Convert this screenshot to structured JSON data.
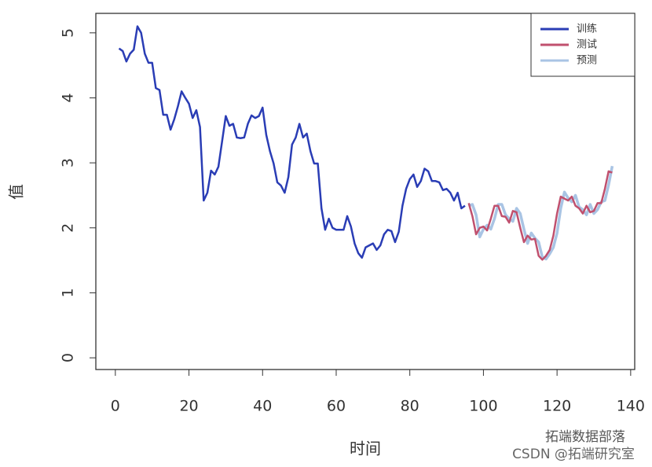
{
  "chart_data": {
    "type": "line",
    "x_label": "时间",
    "y_label": "值",
    "x": [
      1,
      2,
      3,
      4,
      5,
      6,
      7,
      8,
      9,
      10,
      11,
      12,
      13,
      14,
      15,
      16,
      17,
      18,
      19,
      20,
      21,
      22,
      23,
      24,
      25,
      26,
      27,
      28,
      29,
      30,
      31,
      32,
      33,
      34,
      35,
      36,
      37,
      38,
      39,
      40,
      41,
      42,
      43,
      44,
      45,
      46,
      47,
      48,
      49,
      50,
      51,
      52,
      53,
      54,
      55,
      56,
      57,
      58,
      59,
      60,
      61,
      62,
      63,
      64,
      65,
      66,
      67,
      68,
      69,
      70,
      71,
      72,
      73,
      74,
      75,
      76,
      77,
      78,
      79,
      80,
      81,
      82,
      83,
      84,
      85,
      86,
      87,
      88,
      89,
      90,
      91,
      92,
      93,
      94,
      95,
      96,
      97,
      98,
      99,
      100,
      101,
      102,
      103,
      104,
      105,
      106,
      107,
      108,
      109,
      110,
      111,
      112,
      113,
      114,
      115,
      116,
      117,
      118,
      119,
      120,
      121,
      122,
      123,
      124,
      125,
      126,
      127,
      128,
      129,
      130,
      131,
      132,
      133,
      134,
      135
    ],
    "series": [
      {
        "name": "训练",
        "color": "#2a3db5",
        "values": [
          4.76,
          4.72,
          4.56,
          4.68,
          4.74,
          5.1,
          5.0,
          4.68,
          4.54,
          4.54,
          4.15,
          4.12,
          3.74,
          3.74,
          3.51,
          3.67,
          3.87,
          4.1,
          4.0,
          3.91,
          3.69,
          3.81,
          3.55,
          2.42,
          2.54,
          2.88,
          2.82,
          2.94,
          3.33,
          3.72,
          3.57,
          3.6,
          3.39,
          3.38,
          3.39,
          3.6,
          3.73,
          3.69,
          3.72,
          3.85,
          3.43,
          3.18,
          2.99,
          2.7,
          2.65,
          2.54,
          2.78,
          3.28,
          3.39,
          3.6,
          3.39,
          3.45,
          3.18,
          2.99,
          2.99,
          2.3,
          1.97,
          2.14,
          2.0,
          1.97,
          1.97,
          1.97,
          2.18,
          2.02,
          1.76,
          1.61,
          1.54,
          1.7,
          1.73,
          1.76,
          1.66,
          1.73,
          1.9,
          1.97,
          1.95,
          1.78,
          1.94,
          2.34,
          2.6,
          2.75,
          2.82,
          2.63,
          2.72,
          2.91,
          2.87,
          2.72,
          2.72,
          2.7,
          2.58,
          2.6,
          2.54,
          2.42,
          2.54,
          2.3,
          2.34,
          null,
          null,
          null,
          null,
          null,
          null,
          null,
          null,
          null,
          null,
          null,
          null,
          null,
          null,
          null,
          null,
          null,
          null,
          null,
          null,
          null,
          null,
          null,
          null,
          null,
          null,
          null,
          null,
          null,
          null,
          null,
          null,
          null,
          null,
          null,
          null,
          null,
          null,
          null,
          null
        ]
      },
      {
        "name": "测试",
        "color": "#c0506e",
        "values": [
          null,
          null,
          null,
          null,
          null,
          null,
          null,
          null,
          null,
          null,
          null,
          null,
          null,
          null,
          null,
          null,
          null,
          null,
          null,
          null,
          null,
          null,
          null,
          null,
          null,
          null,
          null,
          null,
          null,
          null,
          null,
          null,
          null,
          null,
          null,
          null,
          null,
          null,
          null,
          null,
          null,
          null,
          null,
          null,
          null,
          null,
          null,
          null,
          null,
          null,
          null,
          null,
          null,
          null,
          null,
          null,
          null,
          null,
          null,
          null,
          null,
          null,
          null,
          null,
          null,
          null,
          null,
          null,
          null,
          null,
          null,
          null,
          null,
          null,
          null,
          null,
          null,
          null,
          null,
          null,
          null,
          null,
          null,
          null,
          null,
          null,
          null,
          null,
          null,
          null,
          null,
          null,
          null,
          null,
          null,
          2.38,
          2.18,
          1.9,
          2.0,
          2.02,
          1.96,
          2.14,
          2.34,
          2.34,
          2.18,
          2.17,
          2.08,
          2.26,
          2.24,
          2.0,
          1.78,
          1.88,
          1.82,
          1.83,
          1.57,
          1.51,
          1.57,
          1.66,
          1.88,
          2.22,
          2.48,
          2.45,
          2.42,
          2.48,
          2.34,
          2.3,
          2.22,
          2.34,
          2.24,
          2.26,
          2.38,
          2.38,
          2.6,
          2.87,
          2.85
        ]
      },
      {
        "name": "预测",
        "color": "#a9c4e4",
        "values": [
          null,
          null,
          null,
          null,
          null,
          null,
          null,
          null,
          null,
          null,
          null,
          null,
          null,
          null,
          null,
          null,
          null,
          null,
          null,
          null,
          null,
          null,
          null,
          null,
          null,
          null,
          null,
          null,
          null,
          null,
          null,
          null,
          null,
          null,
          null,
          null,
          null,
          null,
          null,
          null,
          null,
          null,
          null,
          null,
          null,
          null,
          null,
          null,
          null,
          null,
          null,
          null,
          null,
          null,
          null,
          null,
          null,
          null,
          null,
          null,
          null,
          null,
          null,
          null,
          null,
          null,
          null,
          null,
          null,
          null,
          null,
          null,
          null,
          null,
          null,
          null,
          null,
          null,
          null,
          null,
          null,
          null,
          null,
          null,
          null,
          null,
          null,
          null,
          null,
          null,
          null,
          null,
          null,
          null,
          null,
          2.34,
          2.36,
          2.2,
          1.86,
          1.98,
          2.04,
          1.98,
          2.14,
          2.36,
          2.36,
          2.2,
          2.14,
          2.1,
          2.3,
          2.22,
          1.98,
          1.76,
          1.92,
          1.84,
          1.78,
          1.55,
          1.52,
          1.6,
          1.7,
          1.92,
          2.3,
          2.55,
          2.46,
          2.4,
          2.5,
          2.32,
          2.28,
          2.2,
          2.36,
          2.22,
          2.28,
          2.4,
          2.42,
          2.66,
          2.95
        ]
      }
    ],
    "xlim": [
      -5.3,
      141.1
    ],
    "xticks": [
      0,
      20,
      40,
      60,
      80,
      100,
      120,
      140
    ],
    "ylim": [
      -0.18,
      5.3
    ],
    "yticks": [
      0,
      1,
      2,
      3,
      4,
      5
    ],
    "legend": "top-right",
    "annotations": [
      "拓端数据部落",
      "CSDN @拓端研究室"
    ]
  }
}
